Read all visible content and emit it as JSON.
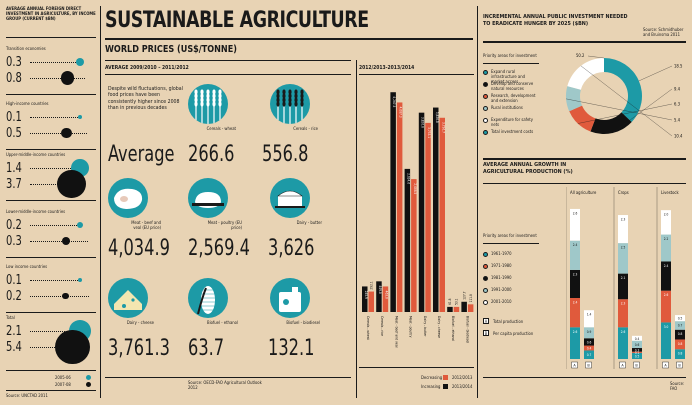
{
  "left_panel": {
    "header": "AVERAGE ANNUAL FOREIGN DIRECT INVESTMENT IN AGRICULTURE, BY INCOME GROUP (CURRENT $BN)",
    "groups": [
      {
        "label": "Transition economies",
        "v1": "0.3",
        "v2": "0.8"
      },
      {
        "label": "High-income countries",
        "v1": "0.1",
        "v2": "0.5"
      },
      {
        "label": "Upper-middle-income countries",
        "v1": "1.4",
        "v2": "3.7"
      },
      {
        "label": "Lower-middle-income countries",
        "v1": "0.2",
        "v2": "0.3"
      },
      {
        "label": "Low income countries",
        "v1": "0.1",
        "v2": "0.2"
      },
      {
        "label": "Total",
        "v1": "2.1",
        "v2": "5.4"
      }
    ],
    "legend": [
      {
        "label": "2005-06",
        "color": "#1d9aa6"
      },
      {
        "label": "2007-08",
        "color": "#111111"
      }
    ],
    "source": "Source: UNCTAD 2011"
  },
  "title": "SUSTAINABLE AGRICULTURE",
  "prices": {
    "heading": "WORLD PRICES (US$/TONNE)",
    "subheading": "AVERAGE 2009/2010 – 2011/2012",
    "intro": "Despite wild fluctuations, global food prices have been consistently higher since 2008 than in previous decades",
    "average_word": "Average",
    "items": [
      {
        "label": "Cereals - wheat",
        "value": "266.6",
        "icon": "wheat-icon"
      },
      {
        "label": "Cereals - rice",
        "value": "556.8",
        "icon": "rice-icon"
      },
      {
        "label": "Meat - beef and veal (EU price)",
        "value": "4,034.9",
        "icon": "steak-icon"
      },
      {
        "label": "Meat - poultry (EU price)",
        "value": "2,569.4",
        "icon": "chicken-icon"
      },
      {
        "label": "Dairy - butter",
        "value": "3,626",
        "icon": "butter-icon"
      },
      {
        "label": "Dairy - cheese",
        "value": "3,761.3",
        "icon": "cheese-icon"
      },
      {
        "label": "Biofuel - ethanol",
        "value": "63.7",
        "icon": "corn-icon"
      },
      {
        "label": "Biofuel - biodiesel",
        "value": "132.1",
        "icon": "fuel-can-icon"
      }
    ],
    "source": "Source: OECD-FAO Agricultural Outlook 2012"
  },
  "years_chart_label": "2012/2013-2013/2014",
  "increasing_legend": {
    "decreasing": "Decreasing",
    "increasing": "Increasing",
    "y1": "2012/2013",
    "y2": "2013/2014"
  },
  "right_top": {
    "heading": "INCREMENTAL ANNUAL PUBLIC INVESTMENT NEEDED TO ERADICATE HUNGER BY 2025 ($BN)",
    "source": "Source: Schmidhuber and Bruinsma 2011",
    "legend_title": "Priority areas for investment",
    "legend": [
      {
        "label": "Expand rural infrastructure and market access",
        "color": "#1d9aa6"
      },
      {
        "label": "Develop and conserve natural resources",
        "color": "#111111"
      },
      {
        "label": "Research, development and extension",
        "color": "#e05a3c"
      },
      {
        "label": "Rural institutions",
        "color": "#9fc8c9"
      },
      {
        "label": "Expenditure for safety nets",
        "color": "#ffffff"
      },
      {
        "label": "Total investment costs",
        "color": "#1d9aa6"
      }
    ]
  },
  "right_bottom": {
    "heading": "AVERAGE ANNUAL GROWTH IN AGRICULTURAL PRODUCTION (%)",
    "legend_title": "Priority areas for investment",
    "legend": [
      {
        "label": "1961-1970",
        "color": "#1d9aa6"
      },
      {
        "label": "1971-1980",
        "color": "#e05a3c"
      },
      {
        "label": "1981-1990",
        "color": "#111111"
      },
      {
        "label": "1991-2000",
        "color": "#9fc8c9"
      },
      {
        "label": "2001-2010",
        "color": "#ffffff"
      }
    ],
    "markers": [
      {
        "letter": "A",
        "label": "Total production"
      },
      {
        "letter": "B",
        "label": "Per capita production"
      }
    ],
    "source": "Source: FAO"
  },
  "chart_data": [
    {
      "type": "bar",
      "title": "WORLD PRICES (US$/TONNE)",
      "xlabel": "2012/2013-2013/2014",
      "categories": [
        "Cereals - wheat",
        "Cereals - rice",
        "Meat - beef and veal",
        "Meat - poultry",
        "Dairy - butter",
        "Dairy - cheese",
        "Biofuel - ethanol",
        "Biofuel - biodiesel"
      ],
      "series": [
        {
          "name": "2012/2013",
          "values": [
            0.5,
            0.6,
            4.3,
            2.8,
            3.9,
            4.0,
            0.1,
            0.2
          ]
        },
        {
          "name": "2013/2014",
          "values": [
            0.4,
            0.5,
            4.1,
            2.6,
            3.7,
            3.8,
            0.1,
            0.15
          ]
        }
      ],
      "bar_labels": [
        [
          "245.9",
          "292.1"
        ],
        [
          "449.8",
          "463.0"
        ],
        [
          "4,267.5",
          "4,087.3"
        ],
        [
          "2,624.6",
          "2,466.5"
        ],
        [
          "3,826.6",
          "3,733.1"
        ],
        [
          "3,836.8",
          "3,736.7"
        ],
        [
          "61.8",
          "53.1"
        ],
        [
          "127.7",
          "111.8"
        ]
      ]
    },
    {
      "type": "pie",
      "title": "INCREMENTAL ANNUAL PUBLIC INVESTMENT NEEDED TO ERADICATE HUNGER BY 2025 ($BN)",
      "categories": [
        "Expand rural infrastructure and market access",
        "Develop and conserve natural resources",
        "Research, development and extension",
        "Rural institutions",
        "Expenditure for safety nets"
      ],
      "values": [
        18.5,
        9.4,
        6.3,
        5.4,
        10.4
      ],
      "total": 50.2
    },
    {
      "type": "bar",
      "title": "AVERAGE ANNUAL GROWTH IN AGRICULTURAL PRODUCTION (%)",
      "groups": [
        "All agriculture",
        "Crops",
        "Livestock"
      ],
      "bars": [
        {
          "group": "All agriculture",
          "measure": "A",
          "segments": [
            2.6,
            2.4,
            2.3,
            2.4,
            2.6
          ],
          "labels": [
            "2.6",
            "2.4",
            "2.3",
            "2.4",
            "2.6"
          ]
        },
        {
          "group": "All agriculture",
          "measure": "B",
          "segments": [
            0.7,
            0.4,
            0.6,
            0.9,
            1.4
          ],
          "labels": [
            "0.7",
            "0.4",
            "0.6",
            "0.9",
            "1.4"
          ]
        },
        {
          "group": "Crops",
          "measure": "A",
          "segments": [
            2.6,
            2.3,
            2.1,
            2.5,
            2.3
          ],
          "labels": [
            "2.6",
            "2.3",
            "2.1",
            "2.5",
            "2.3"
          ]
        },
        {
          "group": "Crops",
          "measure": "B",
          "segments": [
            0.5,
            0.1,
            0.3,
            0.6,
            0.4
          ],
          "labels": [
            "0.5",
            "0.1",
            "0.3",
            "0.6",
            "0.4"
          ]
        },
        {
          "group": "Livestock",
          "measure": "A",
          "segments": [
            3.0,
            2.6,
            2.4,
            2.2,
            2.0
          ],
          "labels": [
            "3.0",
            "2.6",
            "2.4",
            "2.2",
            "2.0"
          ]
        },
        {
          "group": "Livestock",
          "measure": "B",
          "segments": [
            0.8,
            0.8,
            0.8,
            0.7,
            0.5
          ],
          "labels": [
            "0.8",
            "0.8",
            "0.8",
            "0.7",
            "0.5"
          ]
        }
      ],
      "series": [
        "1961-1970",
        "1971-1980",
        "1981-1990",
        "1991-2000",
        "2001-2010"
      ]
    }
  ]
}
